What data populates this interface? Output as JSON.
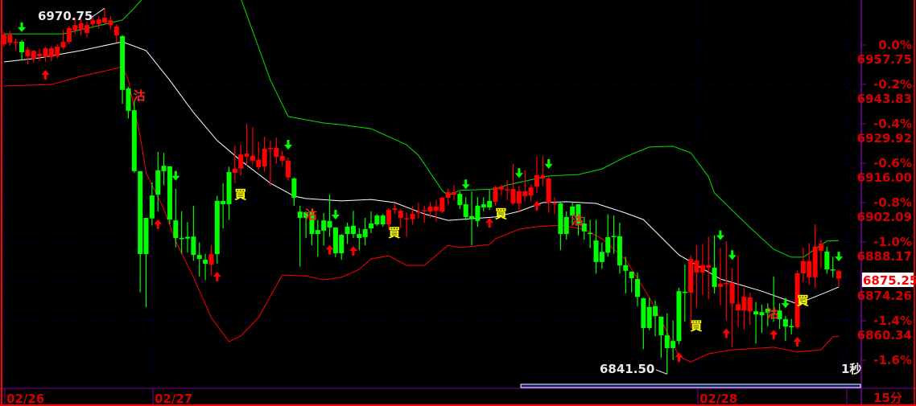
{
  "chart_data": {
    "type": "candlestick",
    "reference_price": 6957.75,
    "ylim": [
      6841.5,
      6970.75
    ],
    "grid": true,
    "right_axis_ticks": [
      {
        "pct": "0.0%",
        "price": "6957.75",
        "value": 6957.75
      },
      {
        "pct": "-0.2%",
        "price": "6943.83",
        "value": 6943.83
      },
      {
        "pct": "-0.4%",
        "price": "6929.92",
        "value": 6929.92
      },
      {
        "pct": "-0.6%",
        "price": "6916.00",
        "value": 6916.0
      },
      {
        "pct": "-0.8%",
        "price": "6902.09",
        "value": 6902.09
      },
      {
        "pct": "-1.0%",
        "price": "6888.17",
        "value": 6888.17
      },
      {
        "pct": "",
        "price": "6874.26",
        "value": 6874.26
      },
      {
        "pct": "-1.4%",
        "price": "6860.34",
        "value": 6860.34
      },
      {
        "pct": "-1.6%",
        "price": "",
        "value": 6846.42
      }
    ],
    "x_labels": [
      {
        "label": "02/26",
        "index": 0
      },
      {
        "label": "02/27",
        "index": 25
      },
      {
        "label": "02/28",
        "index": 117
      }
    ],
    "last_price": "6875.25",
    "high_label": {
      "text": "6970.75",
      "index": 17,
      "value": 6970.75
    },
    "low_label": {
      "text": "6841.50",
      "index": 112,
      "value": 6841.5
    },
    "interval_label": "15分",
    "tick_label": "1秒",
    "candles_ohlc": [
      [
        6958.0,
        6962.3,
        6957.2,
        6961.4
      ],
      [
        6958.6,
        6962.8,
        6957.5,
        6961.4
      ],
      [
        6958.6,
        6960.0,
        6955.9,
        6958.9
      ],
      [
        6958.9,
        6959.5,
        6952.4,
        6955.2
      ],
      [
        6953.8,
        6957.0,
        6951.0,
        6956.1
      ],
      [
        6952.9,
        6956.0,
        6951.4,
        6955.7
      ],
      [
        6953.8,
        6956.4,
        6952.1,
        6954.6
      ],
      [
        6953.5,
        6957.0,
        6951.8,
        6956.6
      ],
      [
        6953.5,
        6957.4,
        6952.0,
        6956.6
      ],
      [
        6953.8,
        6958.0,
        6953.0,
        6957.2
      ],
      [
        6956.9,
        6963.0,
        6956.3,
        6958.9
      ],
      [
        6958.9,
        6964.5,
        6958.0,
        6963.7
      ],
      [
        6962.9,
        6967.6,
        6961.5,
        6964.8
      ],
      [
        6963.1,
        6967.0,
        6961.3,
        6965.4
      ],
      [
        6962.0,
        6966.0,
        6960.5,
        6964.8
      ],
      [
        6965.1,
        6968.0,
        6963.7,
        6966.5
      ],
      [
        6965.1,
        6968.0,
        6963.5,
        6966.8
      ],
      [
        6965.7,
        6970.75,
        6964.8,
        6967.4
      ],
      [
        6964.8,
        6968.0,
        6963.2,
        6966.5
      ],
      [
        6961.2,
        6965.0,
        6958.6,
        6964.3
      ],
      [
        6960.9,
        6961.2,
        6937.0,
        6941.9
      ],
      [
        6942.4,
        6943.0,
        6931.8,
        6934.5
      ],
      [
        6934.7,
        6938.1,
        6912.6,
        6913.2
      ],
      [
        6913.2,
        6913.2,
        6870.4,
        6883.9
      ],
      [
        6896.7,
        6896.7,
        6865.2,
        6883.9
      ],
      [
        6904.6,
        6909.2,
        6894.0,
        6896.5
      ],
      [
        6913.5,
        6920.0,
        6899.0,
        6904.9
      ],
      [
        6915.1,
        6919.6,
        6908.2,
        6913.2
      ],
      [
        6914.9,
        6915.0,
        6894.5,
        6896.1
      ],
      [
        6895.8,
        6907.0,
        6886.3,
        6889.6
      ],
      [
        6889.6,
        6899.0,
        6884.0,
        6889.4
      ],
      [
        6890.0,
        6895.2,
        6884.5,
        6889.4
      ],
      [
        6890.1,
        6901.0,
        6881.5,
        6883.6
      ],
      [
        6883.6,
        6888.0,
        6876.0,
        6882.2
      ],
      [
        6881.9,
        6884.0,
        6874.7,
        6880.5
      ],
      [
        6880.2,
        6887.0,
        6876.5,
        6883.9
      ],
      [
        6902.7,
        6904.5,
        6880.5,
        6883.9
      ],
      [
        6902.7,
        6909.0,
        6893.0,
        6901.5
      ],
      [
        6912.9,
        6914.8,
        6896.0,
        6901.5
      ],
      [
        6912.6,
        6922.2,
        6909.0,
        6914.1
      ],
      [
        6914.1,
        6922.5,
        6911.5,
        6919.1
      ],
      [
        6918.3,
        6929.9,
        6915.2,
        6919.4
      ],
      [
        6916.9,
        6928.7,
        6915.4,
        6918.6
      ],
      [
        6914.6,
        6923.5,
        6913.8,
        6917.2
      ],
      [
        6914.9,
        6925.3,
        6913.0,
        6921.1
      ],
      [
        6921.2,
        6924.0,
        6908.0,
        6921.4
      ],
      [
        6918.3,
        6925.0,
        6916.0,
        6921.4
      ],
      [
        6916.9,
        6920.3,
        6915.2,
        6918.6
      ],
      [
        6911.0,
        6918.0,
        6909.8,
        6916.9
      ],
      [
        6910.6,
        6911.0,
        6901.0,
        6903.8
      ],
      [
        6898.9,
        6901.0,
        6879.5,
        6896.7
      ],
      [
        6898.7,
        6899.0,
        6889.6,
        6896.7
      ],
      [
        6898.7,
        6900.0,
        6887.0,
        6891.0
      ],
      [
        6892.4,
        6896.0,
        6883.0,
        6891.0
      ],
      [
        6895.8,
        6898.4,
        6886.9,
        6892.2
      ],
      [
        6895.6,
        6905.0,
        6890.0,
        6893.3
      ],
      [
        6893.3,
        6893.3,
        6882.8,
        6884.2
      ],
      [
        6890.7,
        6891.0,
        6881.9,
        6884.2
      ],
      [
        6893.6,
        6895.0,
        6887.5,
        6891.0
      ],
      [
        6893.9,
        6899.2,
        6889.6,
        6891.0
      ],
      [
        6891.0,
        6893.0,
        6885.3,
        6889.6
      ],
      [
        6892.7,
        6896.7,
        6887.0,
        6889.9
      ],
      [
        6894.7,
        6899.0,
        6891.3,
        6893.0
      ],
      [
        6897.5,
        6898.0,
        6893.9,
        6894.4
      ],
      [
        6897.5,
        6898.0,
        6893.6,
        6894.4
      ],
      [
        6894.4,
        6900.1,
        6892.5,
        6899.5
      ],
      [
        6899.5,
        6902.0,
        6898.0,
        6900.1
      ],
      [
        6896.7,
        6900.0,
        6893.0,
        6899.2
      ],
      [
        6896.4,
        6898.7,
        6890.0,
        6896.6
      ],
      [
        6896.2,
        6900.7,
        6894.3,
        6898.1
      ],
      [
        6898.7,
        6902.0,
        6896.5,
        6898.9
      ],
      [
        6899.2,
        6901.0,
        6895.0,
        6899.4
      ],
      [
        6898.9,
        6902.3,
        6896.7,
        6900.7
      ],
      [
        6899.2,
        6903.0,
        6895.4,
        6900.7
      ],
      [
        6898.9,
        6904.0,
        6898.4,
        6903.8
      ],
      [
        6903.8,
        6907.0,
        6901.5,
        6905.8
      ],
      [
        6904.9,
        6908.2,
        6903.0,
        6905.8
      ],
      [
        6905.2,
        6906.0,
        6899.8,
        6901.2
      ],
      [
        6901.5,
        6904.0,
        6895.8,
        6897.0
      ],
      [
        6897.3,
        6906.0,
        6887.0,
        6896.2
      ],
      [
        6901.0,
        6904.0,
        6893.6,
        6895.6
      ],
      [
        6901.5,
        6904.0,
        6899.0,
        6900.4
      ],
      [
        6902.7,
        6906.7,
        6899.5,
        6900.4
      ],
      [
        6902.4,
        6908.0,
        6901.0,
        6907.5
      ],
      [
        6906.7,
        6908.5,
        6904.6,
        6907.8
      ],
      [
        6906.6,
        6910.0,
        6903.0,
        6906.8
      ],
      [
        6901.8,
        6915.8,
        6901.2,
        6906.9
      ],
      [
        6901.8,
        6908.0,
        6899.0,
        6906.1
      ],
      [
        6904.4,
        6913.5,
        6902.5,
        6906.1
      ],
      [
        6904.6,
        6908.5,
        6902.5,
        6907.5
      ],
      [
        6907.8,
        6918.3,
        6905.5,
        6911.8
      ],
      [
        6910.6,
        6918.6,
        6908.0,
        6911.8
      ],
      [
        6902.1,
        6911.2,
        6898.5,
        6910.6
      ],
      [
        6901.8,
        6904.0,
        6898.0,
        6901.9
      ],
      [
        6901.8,
        6902.0,
        6885.3,
        6891.0
      ],
      [
        6897.0,
        6899.0,
        6889.0,
        6891.0
      ],
      [
        6900.7,
        6902.5,
        6894.0,
        6897.5
      ],
      [
        6901.5,
        6901.5,
        6890.5,
        6894.7
      ],
      [
        6894.7,
        6897.0,
        6889.0,
        6891.9
      ],
      [
        6891.4,
        6896.0,
        6886.0,
        6891.2
      ],
      [
        6888.7,
        6896.0,
        6877.0,
        6881.1
      ],
      [
        6884.7,
        6888.0,
        6878.7,
        6881.1
      ],
      [
        6889.9,
        6898.0,
        6883.0,
        6884.4
      ],
      [
        6890.3,
        6897.5,
        6884.0,
        6890.1
      ],
      [
        6890.2,
        6895.0,
        6877.0,
        6879.9
      ],
      [
        6880.0,
        6883.0,
        6870.0,
        6878.0
      ],
      [
        6877.7,
        6877.7,
        6870.4,
        6875.4
      ],
      [
        6875.1,
        6877.4,
        6865.5,
        6868.8
      ],
      [
        6868.3,
        6868.5,
        6850.3,
        6857.8
      ],
      [
        6865.2,
        6868.5,
        6857.0,
        6857.8
      ],
      [
        6865.5,
        6867.5,
        6854.9,
        6862.0
      ],
      [
        6861.8,
        6861.8,
        6847.3,
        6855.2
      ],
      [
        6855.2,
        6863.0,
        6841.5,
        6850.7
      ],
      [
        6853.2,
        6860.5,
        6846.5,
        6850.7
      ],
      [
        6870.8,
        6872.0,
        6852.0,
        6853.2
      ],
      [
        6870.6,
        6880.2,
        6860.0,
        6870.4
      ],
      [
        6870.3,
        6883.5,
        6857.8,
        6882.2
      ],
      [
        6877.4,
        6887.0,
        6865.0,
        6881.6
      ],
      [
        6877.4,
        6887.5,
        6869.5,
        6880.0
      ],
      [
        6879.1,
        6890.0,
        6868.0,
        6880.0
      ],
      [
        6879.1,
        6890.5,
        6870.0,
        6872.3
      ],
      [
        6872.3,
        6886.0,
        6865.8,
        6873.4
      ],
      [
        6873.5,
        6888.5,
        6860.5,
        6873.7
      ],
      [
        6866.5,
        6879.0,
        6850.9,
        6873.7
      ],
      [
        6864.0,
        6883.5,
        6858.0,
        6866.2
      ],
      [
        6864.0,
        6872.0,
        6857.3,
        6868.8
      ],
      [
        6863.7,
        6870.2,
        6858.8,
        6868.6
      ],
      [
        6863.7,
        6867.0,
        6852.3,
        6862.6
      ],
      [
        6863.4,
        6866.0,
        6856.0,
        6862.3
      ],
      [
        6864.6,
        6866.5,
        6858.3,
        6863.2
      ],
      [
        6864.0,
        6876.0,
        6860.0,
        6863.8
      ],
      [
        6864.0,
        6866.5,
        6857.5,
        6860.9
      ],
      [
        6860.9,
        6862.0,
        6853.2,
        6858.3
      ],
      [
        6858.5,
        6861.0,
        6855.5,
        6858.3
      ],
      [
        6858.1,
        6878.0,
        6857.5,
        6877.1
      ],
      [
        6877.1,
        6886.2,
        6874.0,
        6881.4
      ],
      [
        6875.7,
        6887.8,
        6873.0,
        6881.4
      ],
      [
        6875.7,
        6894.4,
        6872.0,
        6886.5
      ],
      [
        6885.1,
        6889.0,
        6879.0,
        6887.6
      ],
      [
        6884.8,
        6886.5,
        6877.0,
        6878.5
      ],
      [
        6878.5,
        6883.0,
        6875.7,
        6878.2
      ],
      [
        6875.25,
        6878.5,
        6872.5,
        6877.9
      ]
    ],
    "bands": {
      "middle": [
        [
          0,
          6951.8
        ],
        [
          6,
          6953.2
        ],
        [
          13,
          6955.8
        ],
        [
          20,
          6958.9
        ],
        [
          24,
          6955.8
        ],
        [
          28,
          6945.3
        ],
        [
          32,
          6933.9
        ],
        [
          36,
          6924.0
        ],
        [
          40,
          6916.9
        ],
        [
          45,
          6908.9
        ],
        [
          49,
          6904.4
        ],
        [
          51,
          6903.5
        ],
        [
          57,
          6902.7
        ],
        [
          62,
          6903.2
        ],
        [
          66,
          6902.1
        ],
        [
          71,
          6898.1
        ],
        [
          75,
          6895.8
        ],
        [
          79,
          6896.4
        ],
        [
          83,
          6897.0
        ],
        [
          87,
          6899.0
        ],
        [
          91,
          6902.1
        ],
        [
          95,
          6902.4
        ],
        [
          100,
          6901.8
        ],
        [
          105,
          6898.4
        ],
        [
          108,
          6896.1
        ],
        [
          114,
          6883.6
        ],
        [
          121,
          6875.1
        ],
        [
          128,
          6870.8
        ],
        [
          134,
          6866.3
        ],
        [
          139,
          6870.5
        ],
        [
          141,
          6872.3
        ]
      ],
      "upper": [
        [
          0,
          6961.7
        ],
        [
          10,
          6961.7
        ],
        [
          17,
          6965.1
        ],
        [
          20,
          6966.6
        ],
        [
          22,
          6970.8
        ],
        [
          25,
          6977.9
        ],
        [
          32,
          6996.3
        ],
        [
          40,
          6974.2
        ],
        [
          45,
          6945.3
        ],
        [
          48,
          6932.5
        ],
        [
          54,
          6930.2
        ],
        [
          57,
          6929.6
        ],
        [
          62,
          6928.2
        ],
        [
          68,
          6922.5
        ],
        [
          70,
          6918.8
        ],
        [
          74,
          6906.4
        ],
        [
          75,
          6904.6
        ],
        [
          77,
          6906.4
        ],
        [
          83,
          6906.9
        ],
        [
          85,
          6908.3
        ],
        [
          92,
          6911.5
        ],
        [
          97,
          6912.0
        ],
        [
          101,
          6914.0
        ],
        [
          105,
          6918.3
        ],
        [
          109,
          6921.7
        ],
        [
          113,
          6922.0
        ],
        [
          116,
          6919.7
        ],
        [
          119,
          6911.2
        ],
        [
          120,
          6905.5
        ],
        [
          126,
          6893.3
        ],
        [
          130,
          6885.6
        ],
        [
          133,
          6882.8
        ],
        [
          135,
          6882.8
        ],
        [
          139,
          6888.5
        ],
        [
          141,
          6888.7
        ]
      ],
      "lower": [
        [
          0,
          6943.3
        ],
        [
          8,
          6943.8
        ],
        [
          13,
          6946.7
        ],
        [
          19,
          6949.5
        ],
        [
          20,
          6950.4
        ],
        [
          21,
          6945.3
        ],
        [
          23,
          6925.4
        ],
        [
          24,
          6912.6
        ],
        [
          27,
          6899.8
        ],
        [
          29,
          6888.5
        ],
        [
          32,
          6875.7
        ],
        [
          35,
          6861.5
        ],
        [
          38,
          6853.0
        ],
        [
          40,
          6855.0
        ],
        [
          43,
          6861.5
        ],
        [
          46,
          6872.8
        ],
        [
          47,
          6876.5
        ],
        [
          51,
          6876.2
        ],
        [
          54,
          6874.8
        ],
        [
          57,
          6875.7
        ],
        [
          60,
          6878.5
        ],
        [
          62,
          6882.2
        ],
        [
          65,
          6883.3
        ],
        [
          68,
          6879.9
        ],
        [
          71,
          6879.9
        ],
        [
          75,
          6887.0
        ],
        [
          77,
          6886.2
        ],
        [
          82,
          6887.3
        ],
        [
          83,
          6889.3
        ],
        [
          87,
          6892.7
        ],
        [
          90,
          6893.6
        ],
        [
          94,
          6894.1
        ],
        [
          97,
          6893.0
        ],
        [
          98,
          6892.7
        ],
        [
          101,
          6889.3
        ],
        [
          105,
          6881.9
        ],
        [
          109,
          6868.6
        ],
        [
          112,
          6856.4
        ],
        [
          114,
          6847.8
        ],
        [
          116,
          6845.8
        ],
        [
          119,
          6848.7
        ],
        [
          123,
          6850.1
        ],
        [
          130,
          6851.0
        ],
        [
          134,
          6849.3
        ],
        [
          138,
          6850.1
        ],
        [
          140,
          6854.7
        ],
        [
          141,
          6854.9
        ]
      ]
    },
    "signals": {
      "sell_down_arrows": [
        3,
        29,
        48,
        56,
        78,
        87,
        92,
        121,
        123,
        132,
        141
      ],
      "buy_up_arrows": [
        7,
        26,
        36,
        55,
        59,
        82,
        90,
        114,
        122,
        130,
        134
      ],
      "sell_labels": {
        "text": "沽",
        "indices": [
          21,
          50,
          95,
          128
        ]
      },
      "buy_labels": {
        "text": "買",
        "indices": [
          40,
          66,
          84,
          117,
          135
        ]
      }
    },
    "colors": {
      "up": "#ff0000",
      "down": "#00ff00",
      "middle_band": "#ffffff",
      "upper_band": "#00e000",
      "lower_band": "#ff0000",
      "axis_text": "#d40000",
      "grid": "#0000d0",
      "buy_label": "#ffff00",
      "sell_label": "#ff2020",
      "frame": "#8000a0"
    }
  }
}
